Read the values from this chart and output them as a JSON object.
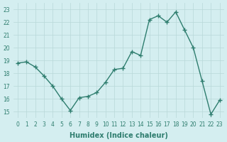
{
  "x": [
    0,
    1,
    2,
    3,
    4,
    5,
    6,
    7,
    8,
    9,
    10,
    11,
    12,
    13,
    14,
    15,
    16,
    17,
    18,
    19,
    20,
    21,
    22,
    23
  ],
  "y": [
    18.8,
    18.9,
    18.5,
    17.8,
    17.0,
    16.0,
    15.1,
    16.1,
    16.2,
    16.5,
    17.3,
    18.3,
    18.4,
    19.7,
    19.4,
    22.2,
    22.5,
    22.0,
    22.8,
    21.4,
    20.0,
    17.4,
    14.8,
    15.9
  ],
  "x_labels": [
    "0",
    "1",
    "2",
    "3",
    "4",
    "5",
    "6",
    "7",
    "8",
    "9",
    "10",
    "11",
    "12",
    "13",
    "14",
    "15",
    "16",
    "17",
    "18",
    "19",
    "20",
    "21",
    "22",
    "23"
  ],
  "ylim": [
    14.5,
    23.5
  ],
  "yticks": [
    15,
    16,
    17,
    18,
    19,
    20,
    21,
    22,
    23
  ],
  "xlabel": "Humidex (Indice chaleur)",
  "line_color": "#2e7d6e",
  "marker": "+",
  "bg_color": "#d4eef0",
  "grid_color": "#b8d8d8",
  "label_color": "#2e7d6e",
  "tick_color": "#2e7d6e"
}
